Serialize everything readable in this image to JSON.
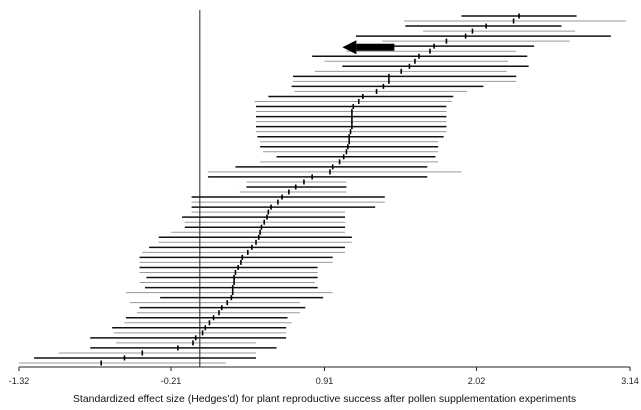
{
  "chart_data": {
    "type": "forest",
    "title": "",
    "xlabel": "Standardized effect size (Hedges'd) for plant reproductive success after pollen supplementation experiments",
    "ylabel": "",
    "xlim": [
      -1.32,
      3.14
    ],
    "x_ticks": [
      {
        "value": -1.32,
        "label": "-1.32"
      },
      {
        "value": -0.21,
        "label": "-0.21"
      },
      {
        "value": 0.91,
        "label": "0.91"
      },
      {
        "value": 2.02,
        "label": "2.02"
      },
      {
        "value": 3.14,
        "label": "3.14"
      }
    ],
    "reference_line": 0.0,
    "arrow": {
      "x": 1.42,
      "y": 0.91,
      "direction": "left"
    },
    "colors": {
      "dark": "#111111",
      "light": "#9a9a9a",
      "axis": "#222222"
    },
    "series": [
      {
        "lo": 1.91,
        "hi": 2.75,
        "mean": 2.33
      },
      {
        "lo": 1.49,
        "hi": 3.11,
        "mean": 2.29
      },
      {
        "lo": 1.5,
        "hi": 2.64,
        "mean": 2.09
      },
      {
        "lo": 1.63,
        "hi": 2.74,
        "mean": 1.99
      },
      {
        "lo": 1.14,
        "hi": 3.0,
        "mean": 1.94
      },
      {
        "lo": 1.33,
        "hi": 2.7,
        "mean": 1.8
      },
      {
        "lo": 1.13,
        "hi": 2.44,
        "mean": 1.71
      },
      {
        "lo": 1.07,
        "hi": 2.31,
        "mean": 1.68
      },
      {
        "lo": 0.82,
        "hi": 2.39,
        "mean": 1.6
      },
      {
        "lo": 0.91,
        "hi": 2.25,
        "mean": 1.57
      },
      {
        "lo": 1.04,
        "hi": 2.4,
        "mean": 1.53
      },
      {
        "lo": 0.84,
        "hi": 2.24,
        "mean": 1.47
      },
      {
        "lo": 0.68,
        "hi": 2.31,
        "mean": 1.38
      },
      {
        "lo": 0.68,
        "hi": 2.31,
        "mean": 1.38
      },
      {
        "lo": 0.67,
        "hi": 2.07,
        "mean": 1.34
      },
      {
        "lo": 0.69,
        "hi": 1.95,
        "mean": 1.29
      },
      {
        "lo": 0.5,
        "hi": 1.85,
        "mean": 1.19
      },
      {
        "lo": 0.4,
        "hi": 1.84,
        "mean": 1.16
      },
      {
        "lo": 0.41,
        "hi": 1.8,
        "mean": 1.12
      },
      {
        "lo": 0.41,
        "hi": 1.8,
        "mean": 1.11
      },
      {
        "lo": 0.41,
        "hi": 1.8,
        "mean": 1.11
      },
      {
        "lo": 0.41,
        "hi": 1.8,
        "mean": 1.11
      },
      {
        "lo": 0.41,
        "hi": 1.8,
        "mean": 1.11
      },
      {
        "lo": 0.41,
        "hi": 1.8,
        "mean": 1.1
      },
      {
        "lo": 0.42,
        "hi": 1.78,
        "mean": 1.09
      },
      {
        "lo": 0.44,
        "hi": 1.74,
        "mean": 1.09
      },
      {
        "lo": 0.44,
        "hi": 1.74,
        "mean": 1.08
      },
      {
        "lo": 0.46,
        "hi": 1.74,
        "mean": 1.07
      },
      {
        "lo": 0.56,
        "hi": 1.72,
        "mean": 1.05
      },
      {
        "lo": 0.44,
        "hi": 1.74,
        "mean": 1.02
      },
      {
        "lo": 0.26,
        "hi": 1.66,
        "mean": 0.97
      },
      {
        "lo": 0.06,
        "hi": 1.91,
        "mean": 0.95
      },
      {
        "lo": 0.06,
        "hi": 1.66,
        "mean": 0.82
      },
      {
        "lo": 0.34,
        "hi": 1.07,
        "mean": 0.76
      },
      {
        "lo": 0.34,
        "hi": 1.07,
        "mean": 0.7
      },
      {
        "lo": 0.29,
        "hi": 1.07,
        "mean": 0.65
      },
      {
        "lo": -0.06,
        "hi": 1.35,
        "mean": 0.6
      },
      {
        "lo": -0.06,
        "hi": 1.35,
        "mean": 0.57
      },
      {
        "lo": -0.06,
        "hi": 1.28,
        "mean": 0.52
      },
      {
        "lo": -0.06,
        "hi": 1.06,
        "mean": 0.5
      },
      {
        "lo": -0.13,
        "hi": 1.06,
        "mean": 0.49
      },
      {
        "lo": -0.11,
        "hi": 1.06,
        "mean": 0.47
      },
      {
        "lo": -0.11,
        "hi": 1.06,
        "mean": 0.45
      },
      {
        "lo": -0.21,
        "hi": 1.06,
        "mean": 0.44
      },
      {
        "lo": -0.3,
        "hi": 1.11,
        "mean": 0.43
      },
      {
        "lo": -0.3,
        "hi": 1.11,
        "mean": 0.41
      },
      {
        "lo": -0.37,
        "hi": 1.06,
        "mean": 0.38
      },
      {
        "lo": -0.42,
        "hi": 1.06,
        "mean": 0.35
      },
      {
        "lo": -0.44,
        "hi": 0.97,
        "mean": 0.31
      },
      {
        "lo": -0.44,
        "hi": 0.97,
        "mean": 0.3
      },
      {
        "lo": -0.44,
        "hi": 0.86,
        "mean": 0.28
      },
      {
        "lo": -0.44,
        "hi": 0.86,
        "mean": 0.26
      },
      {
        "lo": -0.39,
        "hi": 0.86,
        "mean": 0.25
      },
      {
        "lo": -0.44,
        "hi": 0.84,
        "mean": 0.25
      },
      {
        "lo": -0.4,
        "hi": 0.86,
        "mean": 0.24
      },
      {
        "lo": -0.54,
        "hi": 0.97,
        "mean": 0.24
      },
      {
        "lo": -0.29,
        "hi": 0.9,
        "mean": 0.23
      },
      {
        "lo": -0.51,
        "hi": 0.73,
        "mean": 0.2
      },
      {
        "lo": -0.44,
        "hi": 0.77,
        "mean": 0.16
      },
      {
        "lo": -0.46,
        "hi": 0.73,
        "mean": 0.14
      },
      {
        "lo": -0.54,
        "hi": 0.64,
        "mean": 0.1
      },
      {
        "lo": -0.55,
        "hi": 0.67,
        "mean": 0.07
      },
      {
        "lo": -0.64,
        "hi": 0.63,
        "mean": 0.04
      },
      {
        "lo": -0.63,
        "hi": 0.63,
        "mean": 0.02
      },
      {
        "lo": -0.8,
        "hi": 0.63,
        "mean": -0.03
      },
      {
        "lo": -0.61,
        "hi": 0.41,
        "mean": -0.05
      },
      {
        "lo": -0.8,
        "hi": 0.56,
        "mean": -0.16
      },
      {
        "lo": -1.03,
        "hi": 0.41,
        "mean": -0.42
      },
      {
        "lo": -1.21,
        "hi": 0.41,
        "mean": -0.55
      },
      {
        "lo": -1.32,
        "hi": 0.19,
        "mean": -0.72
      }
    ]
  }
}
